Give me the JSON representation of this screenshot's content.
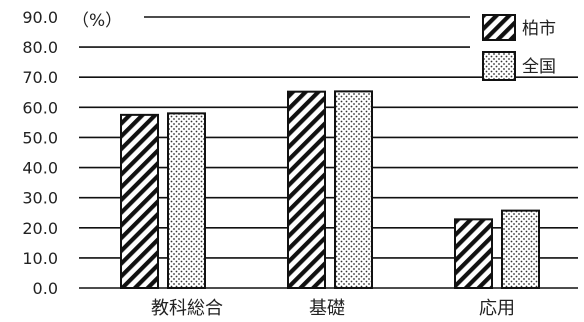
{
  "chart_data": {
    "type": "bar",
    "unit_label": "（%）",
    "categories": [
      "教科総合",
      "基礎",
      "応用"
    ],
    "series": [
      {
        "name": "柏市",
        "values": [
          57.5,
          65.2,
          22.8
        ],
        "pattern": "diagonal-hatch"
      },
      {
        "name": "全国",
        "values": [
          58.0,
          65.3,
          25.7
        ],
        "pattern": "dots"
      }
    ],
    "yticks": [
      "0.0",
      "10.0",
      "20.0",
      "30.0",
      "40.0",
      "50.0",
      "60.0",
      "70.0",
      "80.0",
      "90.0"
    ],
    "ylim": [
      0,
      90
    ],
    "grid": true,
    "legend_position": "top-right"
  }
}
